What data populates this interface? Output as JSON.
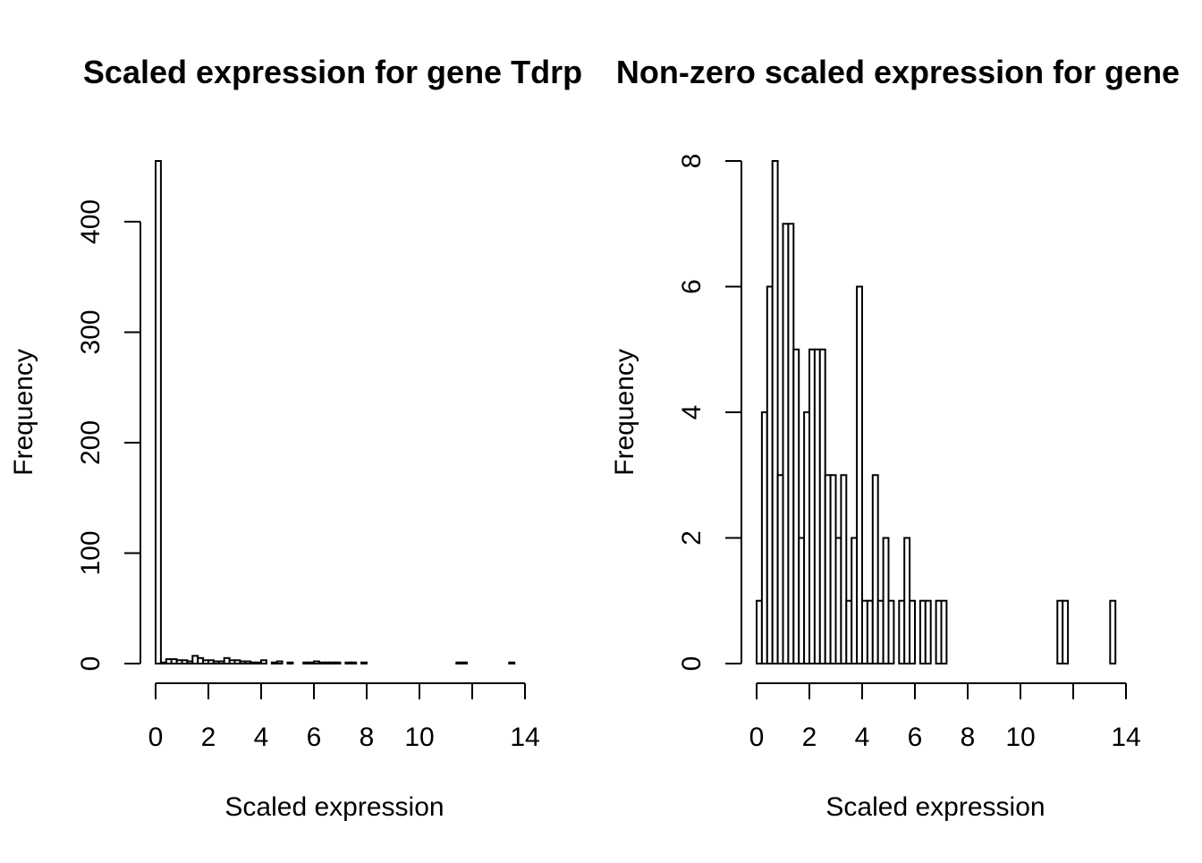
{
  "chart_data": [
    {
      "type": "bar",
      "title": "Scaled expression for gene Tdrp",
      "xlabel": "Scaled expression",
      "ylabel": "Frequency",
      "xlim": [
        0,
        14
      ],
      "ylim": [
        0,
        455
      ],
      "xticks": [
        0,
        2,
        4,
        6,
        8,
        10,
        14
      ],
      "yticks": [
        0,
        100,
        200,
        300,
        400
      ],
      "bin_width": 0.2,
      "values": [
        455,
        1,
        4,
        4,
        3,
        3,
        2,
        7,
        5,
        3,
        3,
        2,
        2,
        5,
        3,
        3,
        2,
        2,
        1,
        1,
        3,
        0,
        1,
        2,
        0,
        1,
        0,
        0,
        1,
        1,
        2,
        1,
        1,
        1,
        1,
        0,
        1,
        1,
        0,
        1,
        0,
        0,
        0,
        0,
        0,
        0,
        0,
        0,
        0,
        0,
        0,
        0,
        0,
        0,
        0,
        0,
        0,
        1,
        1,
        0,
        0,
        0,
        0,
        0,
        0,
        0,
        0,
        1
      ]
    },
    {
      "type": "bar",
      "title": "Non-zero scaled expression for gene",
      "xlabel": "Scaled expression",
      "ylabel": "Frequency",
      "xlim": [
        0,
        14
      ],
      "ylim": [
        0,
        8
      ],
      "xticks": [
        0,
        2,
        4,
        6,
        8,
        10,
        14
      ],
      "yticks": [
        0,
        2,
        4,
        6,
        8
      ],
      "bin_width": 0.2,
      "values": [
        1,
        4,
        6,
        8,
        3,
        7,
        7,
        5,
        2,
        4,
        5,
        5,
        5,
        3,
        3,
        2,
        3,
        1,
        2,
        6,
        1,
        1,
        3,
        1,
        2,
        1,
        0,
        1,
        2,
        1,
        0,
        1,
        1,
        0,
        1,
        1,
        0,
        0,
        0,
        0,
        0,
        0,
        0,
        0,
        0,
        0,
        0,
        0,
        0,
        0,
        0,
        0,
        0,
        0,
        0,
        0,
        0,
        1,
        1,
        0,
        0,
        0,
        0,
        0,
        0,
        0,
        0,
        1
      ]
    }
  ]
}
